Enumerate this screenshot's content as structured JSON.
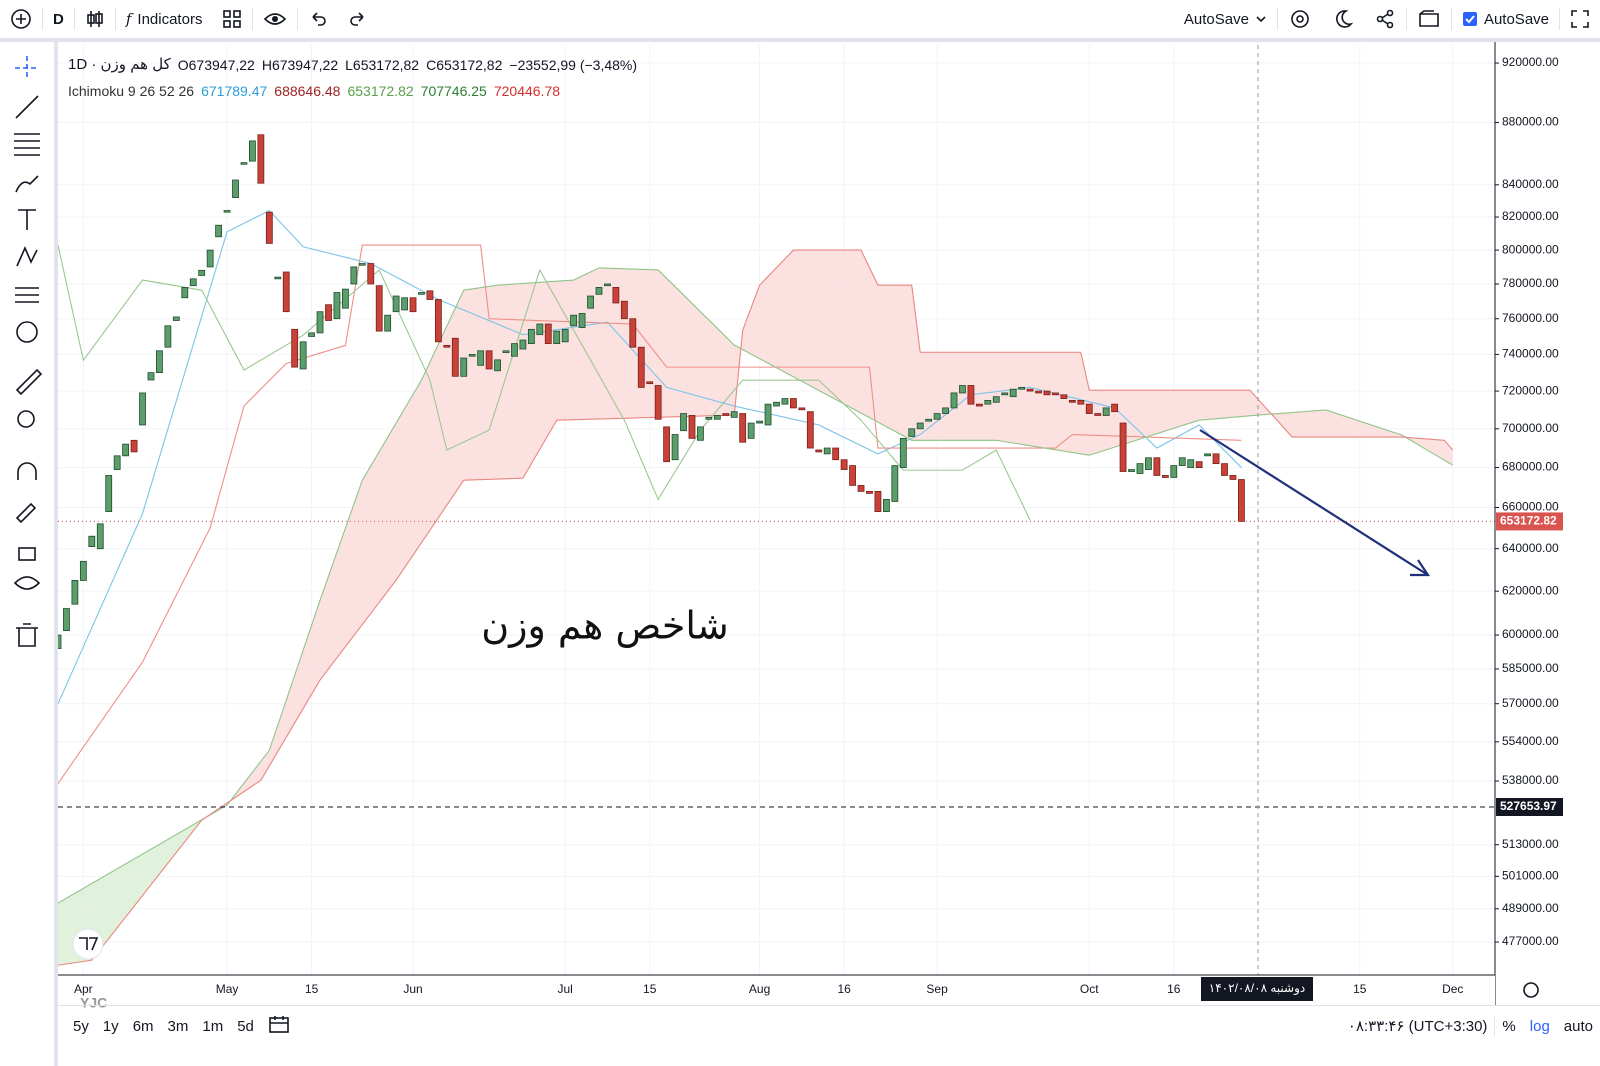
{
  "toolbar": {
    "interval": "D",
    "indicators": "Indicators",
    "autosave_menu": "AutoSave",
    "autosave": "AutoSave"
  },
  "bottom_bar": {
    "ranges": [
      "5y",
      "1y",
      "6m",
      "3m",
      "1m",
      "5d"
    ],
    "clock": "۰۸:۳۳:۴۶ (UTC+3:30)",
    "percent": "%",
    "log": "log",
    "auto": "auto"
  },
  "watermark": "YJC",
  "chart_data": {
    "type": "candlestick",
    "title": "کل هم وزن · 1D",
    "ohlc": [
      "O673947,22",
      "H673947,22",
      "L653172,82",
      "C653172,82",
      "−23552,99 (−3,48%)"
    ],
    "indicator": "Ichimoku 9 26 52 26",
    "indicator_values": [
      {
        "text": "671789.47",
        "color": "#2f9ed8"
      },
      {
        "text": "688646.48",
        "color": "#a02424"
      },
      {
        "text": "653172.82",
        "color": "#5aa04a"
      },
      {
        "text": "707746.25",
        "color": "#2e7d32"
      },
      {
        "text": "720446.78",
        "color": "#d32f2f"
      }
    ],
    "annotation": "شاخص هم وزن",
    "crosshair_label": "دوشنبه ۱۴۰۲/۰۸/۰۸",
    "log_scale": true,
    "grid": true,
    "xlim": [
      0,
      170
    ],
    "xticks": [
      {
        "value": 3,
        "label": "Apr"
      },
      {
        "value": 20,
        "label": "May"
      },
      {
        "value": 30,
        "label": "15"
      },
      {
        "value": 42,
        "label": "Jun"
      },
      {
        "value": 60,
        "label": "Jul"
      },
      {
        "value": 70,
        "label": "15"
      },
      {
        "value": 83,
        "label": "Aug"
      },
      {
        "value": 93,
        "label": "16"
      },
      {
        "value": 104,
        "label": "Sep"
      },
      {
        "value": 122,
        "label": "Oct"
      },
      {
        "value": 132,
        "label": "16"
      },
      {
        "value": 154,
        "label": "15"
      },
      {
        "value": 165,
        "label": "Dec"
      }
    ],
    "ylim": [
      465400,
      932500
    ],
    "yticks": [
      {
        "value": 920000,
        "label": "920000.00"
      },
      {
        "value": 880000,
        "label": "880000.00"
      },
      {
        "value": 840000,
        "label": "840000.00"
      },
      {
        "value": 820000,
        "label": "820000.00"
      },
      {
        "value": 800000,
        "label": "800000.00"
      },
      {
        "value": 780000,
        "label": "780000.00"
      },
      {
        "value": 760000,
        "label": "760000.00"
      },
      {
        "value": 740000,
        "label": "740000.00"
      },
      {
        "value": 720000,
        "label": "720000.00"
      },
      {
        "value": 700000,
        "label": "700000.00"
      },
      {
        "value": 680000,
        "label": "680000.00"
      },
      {
        "value": 660000,
        "label": "660000.00"
      },
      {
        "value": 640000,
        "label": "640000.00"
      },
      {
        "value": 620000,
        "label": "620000.00"
      },
      {
        "value": 600000,
        "label": "600000.00"
      },
      {
        "value": 585000,
        "label": "585000.00"
      },
      {
        "value": 570000,
        "label": "570000.00"
      },
      {
        "value": 554000,
        "label": "554000.00"
      },
      {
        "value": 538000,
        "label": "538000.00"
      },
      {
        "value": 513000,
        "label": "513000.00"
      },
      {
        "value": 501000,
        "label": "501000.00"
      },
      {
        "value": 489000,
        "label": "489000.00"
      },
      {
        "value": 477000,
        "label": "477000.00"
      }
    ],
    "up_color": "#5b9e6c",
    "down_color": "#c9423a",
    "candles": [
      [
        594000,
        600000
      ],
      [
        602000,
        612000
      ],
      [
        614000,
        625000
      ],
      [
        625000,
        634000
      ],
      [
        641000,
        646000
      ],
      [
        640000,
        652000
      ],
      [
        658000,
        676000
      ],
      [
        679000,
        686000
      ],
      [
        686000,
        692000
      ],
      [
        694000,
        688000
      ],
      [
        702000,
        719000
      ],
      [
        726000,
        730000
      ],
      [
        730000,
        742000
      ],
      [
        744000,
        756000
      ],
      [
        759000,
        761000
      ],
      [
        772000,
        778000
      ],
      [
        779000,
        783000
      ],
      [
        785000,
        788000
      ],
      [
        790000,
        800000
      ],
      [
        808000,
        815000
      ],
      [
        823000,
        824000
      ],
      [
        832000,
        843000
      ],
      [
        853000,
        854000
      ],
      [
        855000,
        868000
      ],
      [
        872000,
        841000
      ],
      [
        823000,
        804000
      ],
      [
        783000,
        784000
      ],
      [
        787000,
        764000
      ],
      [
        754000,
        733000
      ],
      [
        732000,
        747000
      ],
      [
        750000,
        752000
      ],
      [
        752000,
        764000
      ],
      [
        768000,
        759000
      ],
      [
        760000,
        775000
      ],
      [
        766000,
        777000
      ],
      [
        780000,
        790000
      ],
      [
        791000,
        792000
      ],
      [
        792000,
        780000
      ],
      [
        779000,
        753000
      ],
      [
        753000,
        762000
      ],
      [
        764000,
        773000
      ],
      [
        765000,
        772000
      ],
      [
        772000,
        764000
      ],
      [
        774000,
        775000
      ],
      [
        776000,
        771000
      ],
      [
        771000,
        747000
      ],
      [
        745000,
        744000
      ],
      [
        749000,
        728000
      ],
      [
        728000,
        738000
      ],
      [
        739000,
        740000
      ],
      [
        734000,
        742000
      ],
      [
        742000,
        732000
      ],
      [
        731000,
        737000
      ],
      [
        741000,
        742000
      ],
      [
        739000,
        746000
      ],
      [
        743000,
        748000
      ],
      [
        746000,
        754000
      ],
      [
        751000,
        757000
      ],
      [
        757000,
        746000
      ],
      [
        746000,
        753000
      ],
      [
        747000,
        754000
      ],
      [
        756000,
        762000
      ],
      [
        755000,
        763000
      ],
      [
        766000,
        773000
      ],
      [
        774000,
        778000
      ],
      [
        779000,
        780000
      ],
      [
        778000,
        769000
      ],
      [
        770000,
        760000
      ],
      [
        760000,
        744000
      ],
      [
        744000,
        722000
      ],
      [
        725000,
        724000
      ],
      [
        723000,
        705000
      ],
      [
        701000,
        683000
      ],
      [
        684000,
        697000
      ],
      [
        699000,
        708000
      ],
      [
        707000,
        695000
      ],
      [
        694000,
        701000
      ],
      [
        705000,
        706000
      ],
      [
        705000,
        707000
      ],
      [
        708000,
        707000
      ],
      [
        706000,
        709000
      ],
      [
        708000,
        693000
      ],
      [
        695000,
        703000
      ],
      [
        703000,
        704000
      ],
      [
        702000,
        713000
      ],
      [
        712000,
        714000
      ],
      [
        713000,
        716000
      ],
      [
        716000,
        711000
      ],
      [
        711000,
        710000
      ],
      [
        709000,
        690000
      ],
      [
        689000,
        688000
      ],
      [
        687000,
        690000
      ],
      [
        690000,
        684000
      ],
      [
        684000,
        679000
      ],
      [
        681000,
        671000
      ],
      [
        671000,
        668000
      ],
      [
        668000,
        667000
      ],
      [
        668000,
        658000
      ],
      [
        658000,
        664000
      ],
      [
        663000,
        681000
      ],
      [
        680000,
        695000
      ],
      [
        696000,
        700000
      ],
      [
        700000,
        703000
      ],
      [
        704000,
        705000
      ],
      [
        705000,
        708000
      ],
      [
        708000,
        711000
      ],
      [
        711000,
        719000
      ],
      [
        719000,
        723000
      ],
      [
        723000,
        713000
      ],
      [
        713000,
        712000
      ],
      [
        713000,
        715000
      ],
      [
        714000,
        717000
      ],
      [
        718000,
        719000
      ],
      [
        717000,
        721000
      ],
      [
        721000,
        722000
      ],
      [
        721000,
        720000
      ],
      [
        720000,
        719000
      ],
      [
        720000,
        718000
      ],
      [
        719000,
        718000
      ],
      [
        718000,
        716000
      ],
      [
        715000,
        714000
      ],
      [
        715000,
        713000
      ],
      [
        713000,
        708000
      ],
      [
        708000,
        707000
      ],
      [
        707000,
        711000
      ],
      [
        713000,
        709000
      ],
      [
        703000,
        678000
      ],
      [
        678000,
        679000
      ],
      [
        677000,
        682000
      ],
      [
        679000,
        685000
      ],
      [
        685000,
        676000
      ],
      [
        676000,
        675000
      ],
      [
        675000,
        681000
      ],
      [
        681000,
        685000
      ],
      [
        680000,
        684000
      ],
      [
        683000,
        680000
      ],
      [
        686000,
        687000
      ],
      [
        687000,
        682000
      ],
      [
        682000,
        676000
      ],
      [
        676000,
        674000
      ],
      [
        673947.22,
        653172.82
      ]
    ],
    "lines": [
      {
        "color": "#7cc4e8",
        "x": [
          0,
          10,
          20,
          25,
          29,
          37,
          45,
          55,
          65,
          72,
          80,
          90,
          97,
          102,
          108,
          115,
          125,
          130,
          135,
          140
        ],
        "values": [
          570000,
          657000,
          811000,
          824000,
          802000,
          792000,
          771000,
          751000,
          758000,
          722000,
          712000,
          702000,
          687000,
          697000,
          718000,
          722000,
          711000,
          690000,
          702000,
          680000
        ]
      },
      {
        "color": "#ee8f86",
        "x": [
          0,
          10,
          18,
          22,
          27,
          34,
          36,
          50,
          51,
          68,
          72,
          96,
          97,
          118,
          120,
          140
        ],
        "values": [
          537000,
          588000,
          650000,
          712000,
          735000,
          745000,
          803000,
          803000,
          760000,
          757000,
          733000,
          733000,
          690000,
          690000,
          697000,
          694000
        ]
      },
      {
        "color": "#8fc587",
        "x": [
          0,
          20,
          25,
          31,
          36,
          43,
          48,
          52,
          61,
          64,
          71,
          80,
          101,
          111,
          122,
          135,
          142,
          150,
          159,
          165
        ],
        "values": [
          491100,
          528400,
          550500,
          615800,
          673600,
          725900,
          776400,
          779300,
          782300,
          789400,
          788200,
          745200,
          694000,
          694000,
          686300,
          704500,
          707200,
          709900,
          696700,
          681200
        ]
      },
      {
        "color": "#e8877f",
        "x": [
          0,
          4,
          17,
          24,
          31,
          40,
          48,
          55,
          59,
          80,
          81,
          83,
          87,
          95,
          97,
          101,
          102,
          121,
          122,
          141,
          146,
          159,
          164,
          165
        ],
        "values": [
          468800,
          470600,
          522500,
          538300,
          580200,
          625100,
          673600,
          674600,
          704500,
          707200,
          753500,
          779300,
          800000,
          800000,
          779300,
          779300,
          741200,
          741200,
          720500,
          720500,
          695700,
          695700,
          694000,
          689000
        ]
      },
      {
        "color": "#9bc88f",
        "x": [
          0,
          3,
          10,
          17,
          22,
          29,
          38,
          44,
          46,
          51,
          57,
          67,
          71,
          76,
          81,
          90,
          95,
          100,
          107,
          111,
          115
        ],
        "values": [
          803000,
          736800,
          782300,
          776400,
          731400,
          750700,
          788200,
          725900,
          689000,
          699300,
          788200,
          704500,
          664000,
          699300,
          725900,
          725900,
          704500,
          678700,
          678700,
          689000,
          653800
        ]
      }
    ],
    "cloud_colors": [
      "#dcefd6",
      "#fcdcdc"
    ],
    "price_lines": [
      {
        "value": 653172.82,
        "color": "#d9534f",
        "style": "dotted"
      },
      {
        "value": 527653.97,
        "color": "#131722",
        "style": "dashed"
      }
    ]
  }
}
